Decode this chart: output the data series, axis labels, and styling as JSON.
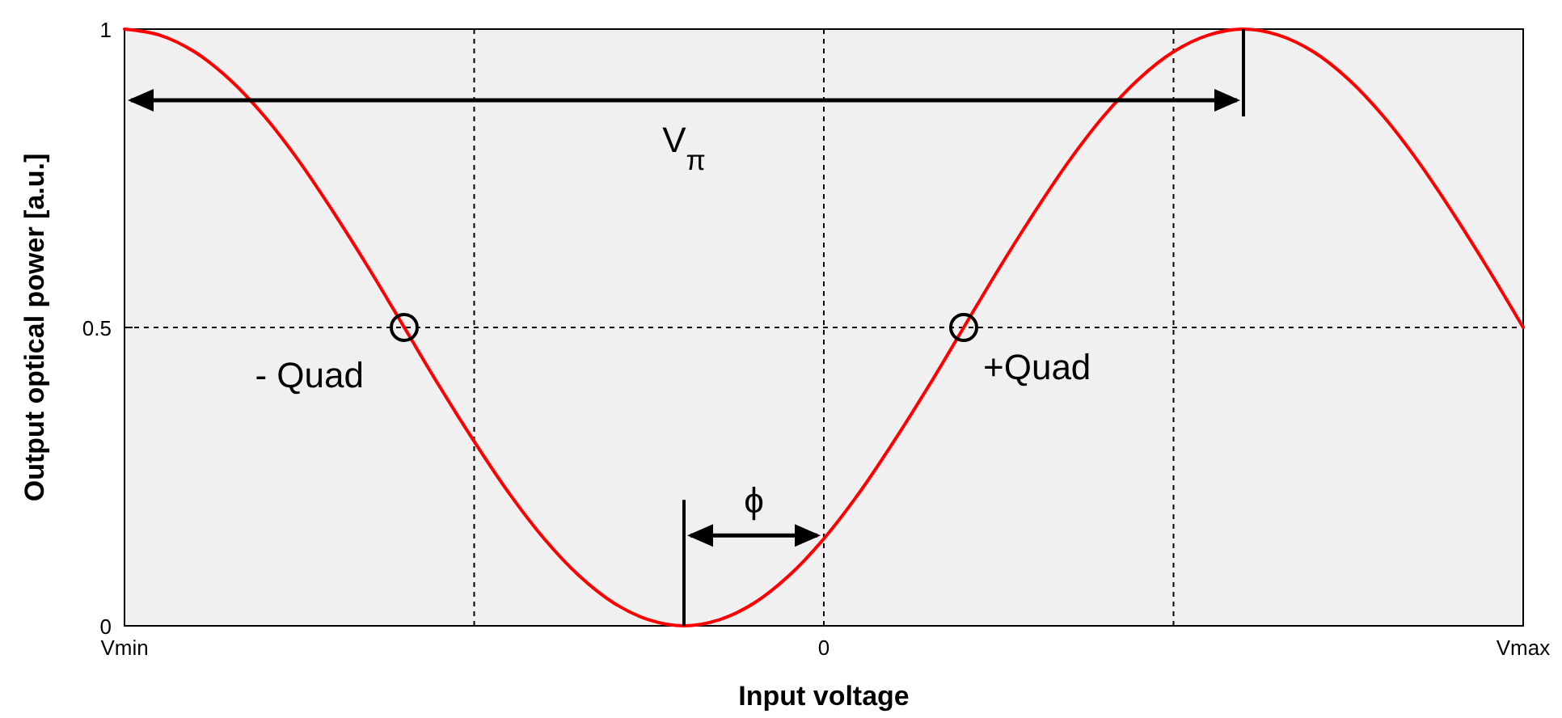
{
  "chart_data": {
    "type": "line",
    "xlabel": "Input voltage",
    "ylabel": "Output optical power [a.u.]",
    "categories": [
      "Vmin",
      null,
      null,
      null,
      null,
      null,
      null,
      null,
      null,
      null,
      null,
      null,
      null,
      null,
      null,
      null,
      null,
      null,
      null,
      null,
      "0",
      null,
      null,
      null,
      null,
      null,
      null,
      null,
      null,
      null,
      null,
      null,
      null,
      null,
      null,
      null,
      null,
      null,
      null,
      null,
      "Vmax"
    ],
    "ylim": [
      0,
      1
    ],
    "yticks": [
      0,
      0.5,
      1
    ],
    "grid": true,
    "series": [
      {
        "color": "#ff0000",
        "marker": "none",
        "line_style": "solid",
        "values": [
          1,
          0.99,
          0.962,
          0.916,
          0.854,
          0.778,
          0.691,
          0.598,
          0.5,
          0.402,
          0.309,
          0.222,
          0.146,
          0.084,
          0.038,
          0.01,
          0,
          0.01,
          0.038,
          0.084,
          0.146,
          0.222,
          0.309,
          0.402,
          0.5,
          0.598,
          0.691,
          0.778,
          0.854,
          0.916,
          0.962,
          0.99,
          1,
          0.99,
          0.962,
          0.916,
          0.854,
          0.778,
          0.691,
          0.598,
          0.5
        ]
      },
      {
        "type": "scatter",
        "color": "#000000",
        "marker": "circle",
        "values": [
          null,
          null,
          null,
          null,
          null,
          null,
          null,
          null,
          0.5,
          null,
          null,
          null,
          null,
          null,
          null,
          null,
          null,
          null,
          null,
          null,
          null,
          null,
          null,
          null,
          0.5,
          null,
          null,
          null,
          null,
          null,
          null,
          null,
          null,
          null,
          null,
          null,
          null,
          null,
          null,
          null,
          null
        ]
      }
    ],
    "annotations": [
      "V$_{π}$",
      "- Quad",
      "+Quad",
      "ϕ"
    ]
  }
}
